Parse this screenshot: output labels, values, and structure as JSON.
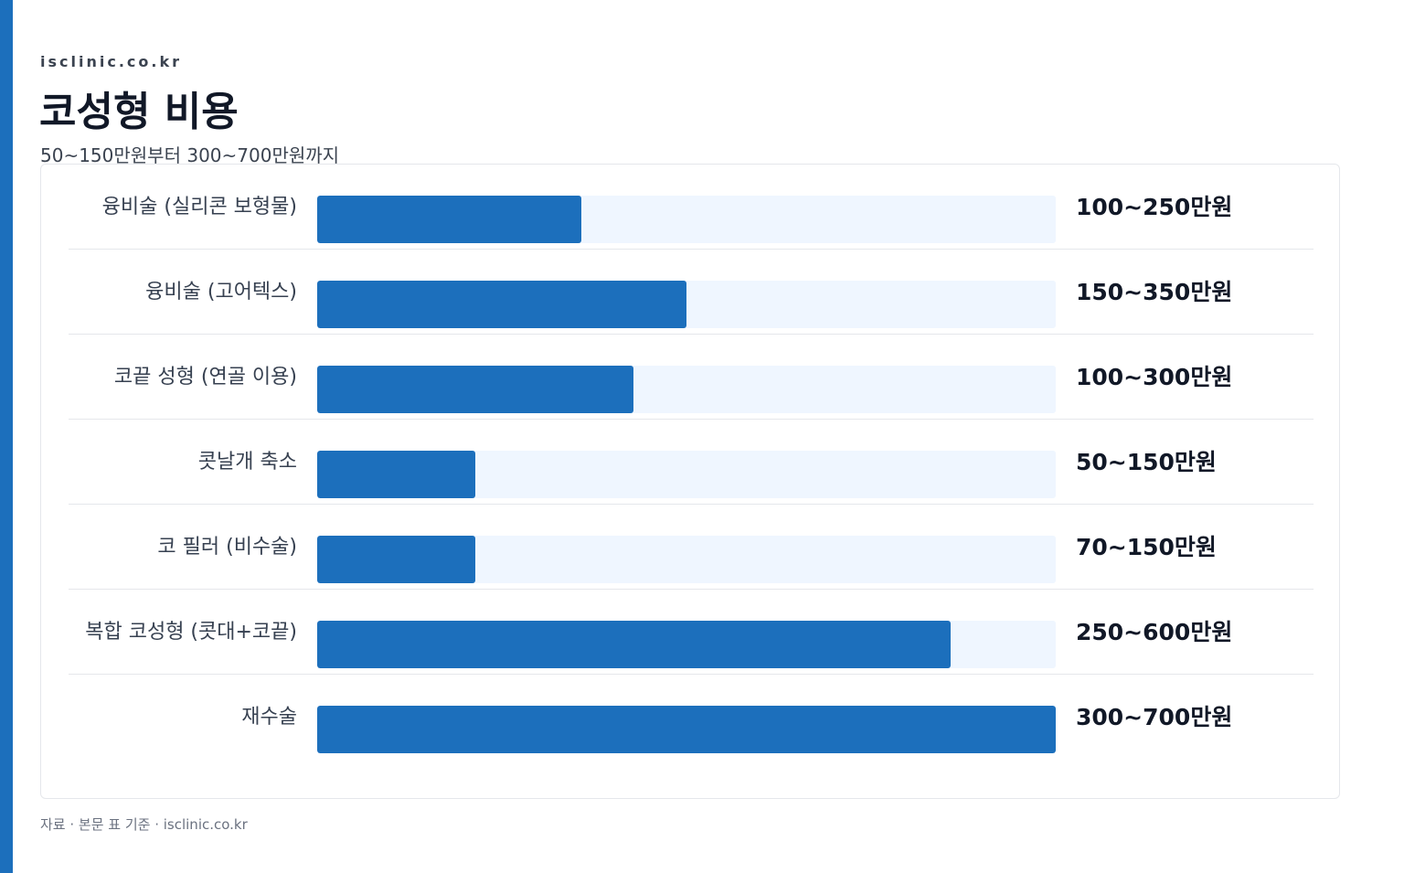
{
  "site": "isclinic.co.kr",
  "title": "코성형 비용",
  "subtitle": "50~150만원부터 300~700만원까지",
  "footer": "자료 · 본문 표 기준 · isclinic.co.kr",
  "colors": {
    "accent": "#1c6fbc",
    "track": "#eff6ff",
    "text": "#111827"
  },
  "chart_data": {
    "type": "bar",
    "orientation": "horizontal",
    "categories": [
      "융비술 (실리콘 보형물)",
      "융비술 (고어텍스)",
      "코끝 성형 (연골 이용)",
      "콧날개 축소",
      "코 필러 (비수술)",
      "복합 코성형 (콧대+코끝)",
      "재수술"
    ],
    "value_labels": [
      "100~250만원",
      "150~350만원",
      "100~300만원",
      "50~150만원",
      "70~150만원",
      "250~600만원",
      "300~700만원"
    ],
    "ranges": [
      [
        100,
        250
      ],
      [
        150,
        350
      ],
      [
        100,
        300
      ],
      [
        50,
        150
      ],
      [
        70,
        150
      ],
      [
        250,
        600
      ],
      [
        300,
        700
      ]
    ],
    "values": [
      250,
      350,
      300,
      150,
      150,
      600,
      700
    ],
    "xlim": [
      0,
      700
    ],
    "grid": false
  }
}
